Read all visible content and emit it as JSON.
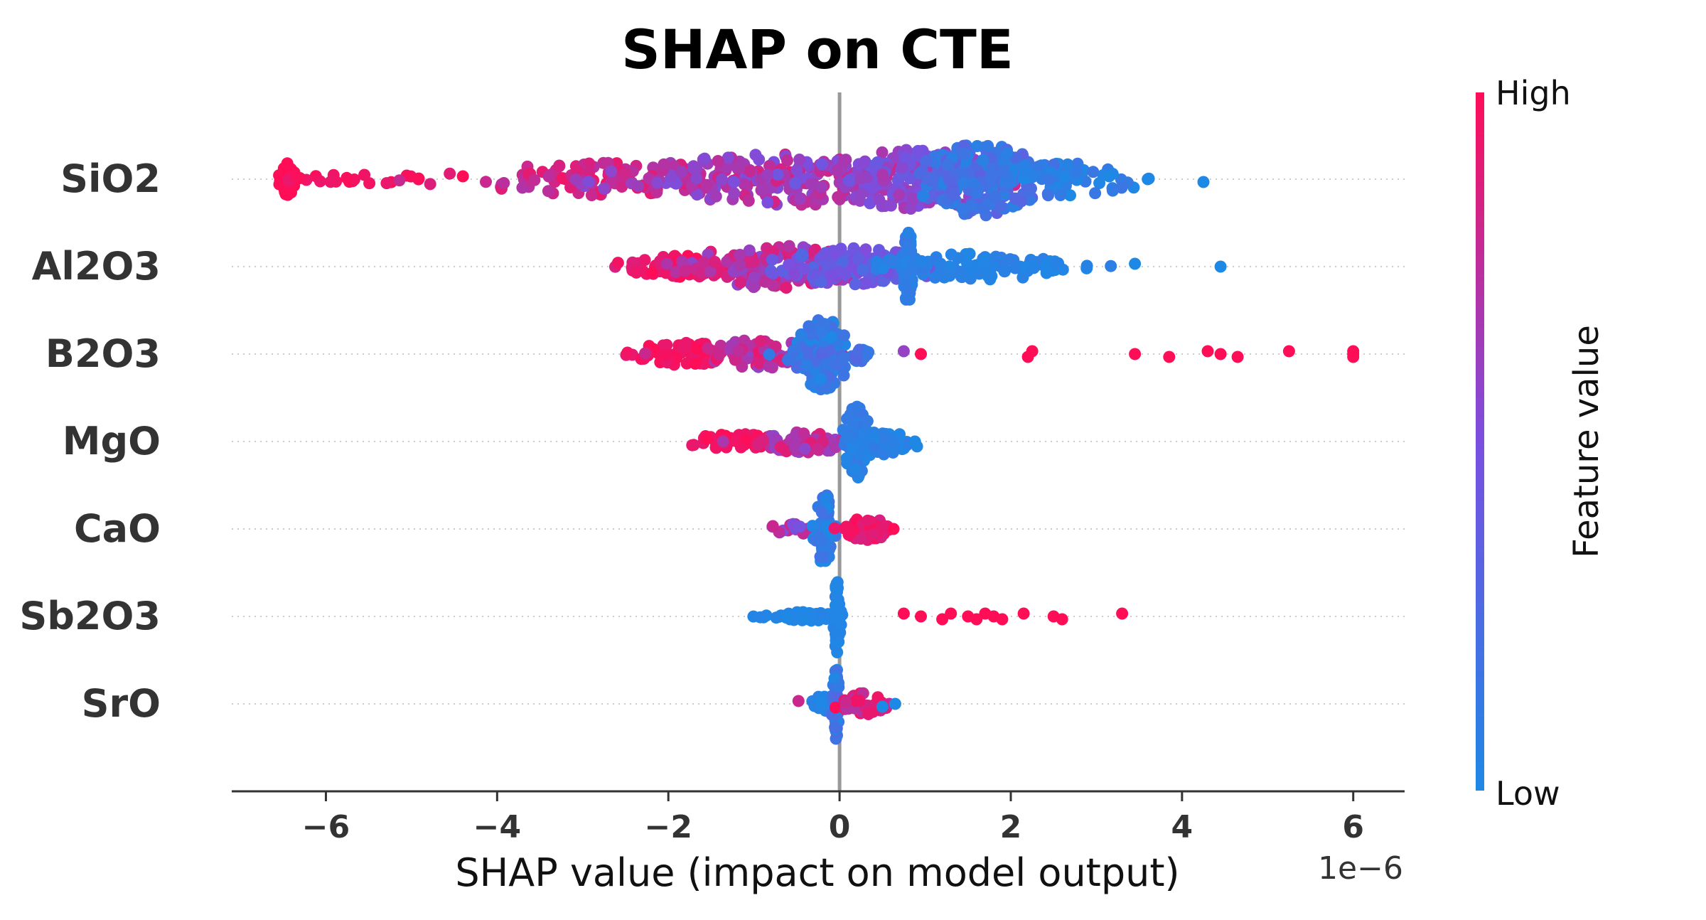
{
  "chart_data": {
    "type": "scatter",
    "subtype": "shap-beeswarm",
    "title": "SHAP on CTE",
    "xlabel": "SHAP value (impact on model output)",
    "x_offset_label": "1e−6",
    "x_scale_exponent": -6,
    "xlim": [
      -7.1,
      6.6
    ],
    "x_ticks": [
      -6,
      -4,
      -2,
      0,
      2,
      4,
      6
    ],
    "x_tick_labels": [
      "−6",
      "−4",
      "−2",
      "0",
      "2",
      "4",
      "6"
    ],
    "zero_line": 0,
    "colorbar": {
      "label": "Feature value",
      "high_label": "High",
      "low_label": "Low",
      "high_color": "#ff0d57",
      "mid_color": "#7a4fe0",
      "low_color": "#1e88e5"
    },
    "series": [
      {
        "name": "SiO2",
        "clusters": [
          {
            "center": -6.45,
            "spread": 0.04,
            "count": 70,
            "width": 0.45,
            "color_low": 1.0,
            "color_high": 1.0
          },
          {
            "center": -5.7,
            "spread": 0.6,
            "count": 24,
            "width": 0.12,
            "color_low": 0.92,
            "color_high": 1.0
          },
          {
            "center": -2.6,
            "spread": 0.9,
            "count": 120,
            "width": 0.45,
            "color_low": 0.7,
            "color_high": 0.95
          },
          {
            "center": -0.5,
            "spread": 1.0,
            "count": 200,
            "width": 0.7,
            "color_low": 0.5,
            "color_high": 0.85
          },
          {
            "center": 0.9,
            "spread": 0.6,
            "count": 160,
            "width": 0.8,
            "color_low": 0.4,
            "color_high": 0.7
          },
          {
            "center": 1.65,
            "spread": 0.35,
            "count": 200,
            "width": 1.0,
            "color_low": 0.05,
            "color_high": 0.35
          },
          {
            "center": 2.6,
            "spread": 0.45,
            "count": 70,
            "width": 0.45,
            "color_low": 0.0,
            "color_high": 0.2
          }
        ],
        "points": [
          {
            "x": -4.4,
            "c": 1.0
          },
          {
            "x": 3.6,
            "c": 0.0
          },
          {
            "x": 4.25,
            "c": 0.0
          },
          {
            "x": 3.15,
            "c": 0.0
          }
        ]
      },
      {
        "name": "Al2O3",
        "clusters": [
          {
            "center": -1.9,
            "spread": 0.35,
            "count": 70,
            "width": 0.3,
            "color_low": 0.85,
            "color_high": 1.0
          },
          {
            "center": -0.8,
            "spread": 0.55,
            "count": 120,
            "width": 0.6,
            "color_low": 0.55,
            "color_high": 0.9
          },
          {
            "center": 0.2,
            "spread": 0.45,
            "count": 120,
            "width": 0.5,
            "color_low": 0.25,
            "color_high": 0.55
          },
          {
            "center": 0.8,
            "spread": 0.03,
            "count": 60,
            "width": 1.0,
            "color_low": 0.0,
            "color_high": 0.15
          },
          {
            "center": 1.6,
            "spread": 0.6,
            "count": 110,
            "width": 0.35,
            "color_low": 0.0,
            "color_high": 0.1
          },
          {
            "center": 2.5,
            "spread": 0.2,
            "count": 14,
            "width": 0.1,
            "color_low": 0.0,
            "color_high": 0.05
          }
        ],
        "points": [
          {
            "x": 3.45,
            "c": 0.0
          },
          {
            "x": 4.45,
            "c": 0.0
          }
        ]
      },
      {
        "name": "B2O3",
        "clusters": [
          {
            "center": -1.8,
            "spread": 0.35,
            "count": 70,
            "width": 0.3,
            "color_low": 0.9,
            "color_high": 1.0
          },
          {
            "center": -0.9,
            "spread": 0.35,
            "count": 70,
            "width": 0.4,
            "color_low": 0.6,
            "color_high": 0.95
          },
          {
            "center": -0.2,
            "spread": 0.15,
            "count": 170,
            "width": 1.0,
            "color_low": 0.0,
            "color_high": 0.25
          },
          {
            "center": 0.2,
            "spread": 0.15,
            "count": 20,
            "width": 0.2,
            "color_low": 0.1,
            "color_high": 0.3
          }
        ],
        "points": [
          {
            "x": 0.75,
            "c": 0.6
          },
          {
            "x": 0.95,
            "c": 1.0
          },
          {
            "x": 2.2,
            "c": 1.0
          },
          {
            "x": 2.25,
            "c": 1.0
          },
          {
            "x": 3.45,
            "c": 1.0
          },
          {
            "x": 3.85,
            "c": 1.0
          },
          {
            "x": 4.3,
            "c": 1.0
          },
          {
            "x": 4.45,
            "c": 1.0
          },
          {
            "x": 4.65,
            "c": 1.0
          },
          {
            "x": 5.25,
            "c": 1.0
          },
          {
            "x": 6.0,
            "c": 1.0
          },
          {
            "x": 6.0,
            "c": 1.0
          },
          {
            "x": 6.0,
            "c": 1.0
          }
        ]
      },
      {
        "name": "MgO",
        "clusters": [
          {
            "center": -1.2,
            "spread": 0.3,
            "count": 60,
            "width": 0.2,
            "color_low": 0.9,
            "color_high": 1.0
          },
          {
            "center": -0.4,
            "spread": 0.3,
            "count": 70,
            "width": 0.3,
            "color_low": 0.55,
            "color_high": 0.9
          },
          {
            "center": 0.2,
            "spread": 0.08,
            "count": 80,
            "width": 1.0,
            "color_low": 0.0,
            "color_high": 0.15
          },
          {
            "center": 0.55,
            "spread": 0.2,
            "count": 50,
            "width": 0.35,
            "color_low": 0.0,
            "color_high": 0.1
          }
        ],
        "points": [
          {
            "x": -1.55,
            "c": 1.0
          },
          {
            "x": 0.88,
            "c": 0.0
          }
        ]
      },
      {
        "name": "CaO",
        "clusters": [
          {
            "center": -0.5,
            "spread": 0.15,
            "count": 20,
            "width": 0.15,
            "color_low": 0.3,
            "color_high": 0.9
          },
          {
            "center": -0.18,
            "spread": 0.05,
            "count": 60,
            "width": 1.0,
            "color_low": 0.0,
            "color_high": 0.2
          },
          {
            "center": 0.3,
            "spread": 0.17,
            "count": 60,
            "width": 0.3,
            "color_low": 0.85,
            "color_high": 1.0
          }
        ],
        "points": [
          {
            "x": -0.78,
            "c": 0.8
          },
          {
            "x": 0.63,
            "c": 1.0
          }
        ]
      },
      {
        "name": "Sb2O3",
        "clusters": [
          {
            "center": -0.4,
            "spread": 0.2,
            "count": 50,
            "width": 0.12,
            "color_low": 0.0,
            "color_high": 0.05
          },
          {
            "center": -0.03,
            "spread": 0.02,
            "count": 50,
            "width": 1.0,
            "color_low": 0.0,
            "color_high": 0.05
          }
        ],
        "points": [
          {
            "x": 0.75,
            "c": 1.0
          },
          {
            "x": 0.95,
            "c": 1.0
          },
          {
            "x": 1.2,
            "c": 1.0
          },
          {
            "x": 1.3,
            "c": 1.0
          },
          {
            "x": 1.5,
            "c": 1.0
          },
          {
            "x": 1.6,
            "c": 1.0
          },
          {
            "x": 1.7,
            "c": 1.0
          },
          {
            "x": 1.8,
            "c": 1.0
          },
          {
            "x": 1.9,
            "c": 1.0
          },
          {
            "x": 2.15,
            "c": 1.0
          },
          {
            "x": 2.5,
            "c": 1.0
          },
          {
            "x": 2.6,
            "c": 1.0
          },
          {
            "x": 3.3,
            "c": 1.0
          }
        ]
      },
      {
        "name": "SrO",
        "clusters": [
          {
            "center": -0.2,
            "spread": 0.12,
            "count": 25,
            "width": 0.2,
            "color_low": 0.0,
            "color_high": 0.1
          },
          {
            "center": -0.04,
            "spread": 0.02,
            "count": 60,
            "width": 1.0,
            "color_low": 0.0,
            "color_high": 0.3
          },
          {
            "center": 0.3,
            "spread": 0.15,
            "count": 40,
            "width": 0.3,
            "color_low": 0.7,
            "color_high": 1.0
          }
        ],
        "points": [
          {
            "x": -0.48,
            "c": 0.8
          },
          {
            "x": 0.65,
            "c": 0.0
          },
          {
            "x": 0.5,
            "c": 0.0
          }
        ]
      }
    ]
  }
}
